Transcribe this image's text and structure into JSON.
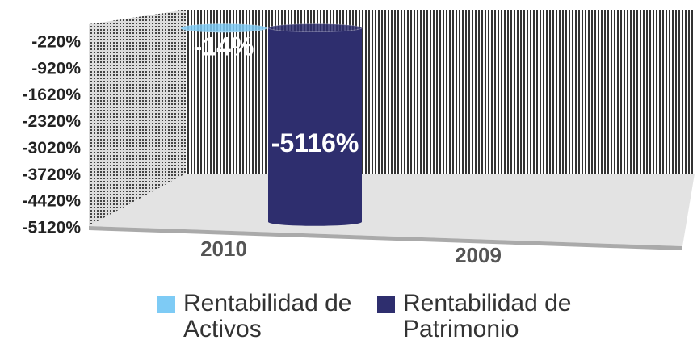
{
  "chart_data": {
    "type": "cylinder",
    "categories": [
      "2010",
      "2009"
    ],
    "series": [
      {
        "name": "Rentabilidad de Activos",
        "color": "#7ecbf5",
        "values": [
          -14,
          null
        ],
        "value_labels": [
          "-14%",
          null
        ]
      },
      {
        "name": "Rentabilidad de Patrimonio",
        "color": "#2e2e6e",
        "values": [
          -5116,
          null
        ],
        "value_labels": [
          "-5116%",
          null
        ]
      }
    ],
    "ylim": [
      -5120,
      480
    ],
    "yticks": [
      {
        "value": -220,
        "label": "-220%"
      },
      {
        "value": -920,
        "label": "-920%"
      },
      {
        "value": -1620,
        "label": "-1620%"
      },
      {
        "value": -2320,
        "label": "-2320%"
      },
      {
        "value": -3020,
        "label": "-3020%"
      },
      {
        "value": -3720,
        "label": "-3720%"
      },
      {
        "value": -4420,
        "label": "-4420%"
      },
      {
        "value": -5120,
        "label": "-5120%"
      }
    ],
    "legend": "bottom"
  }
}
